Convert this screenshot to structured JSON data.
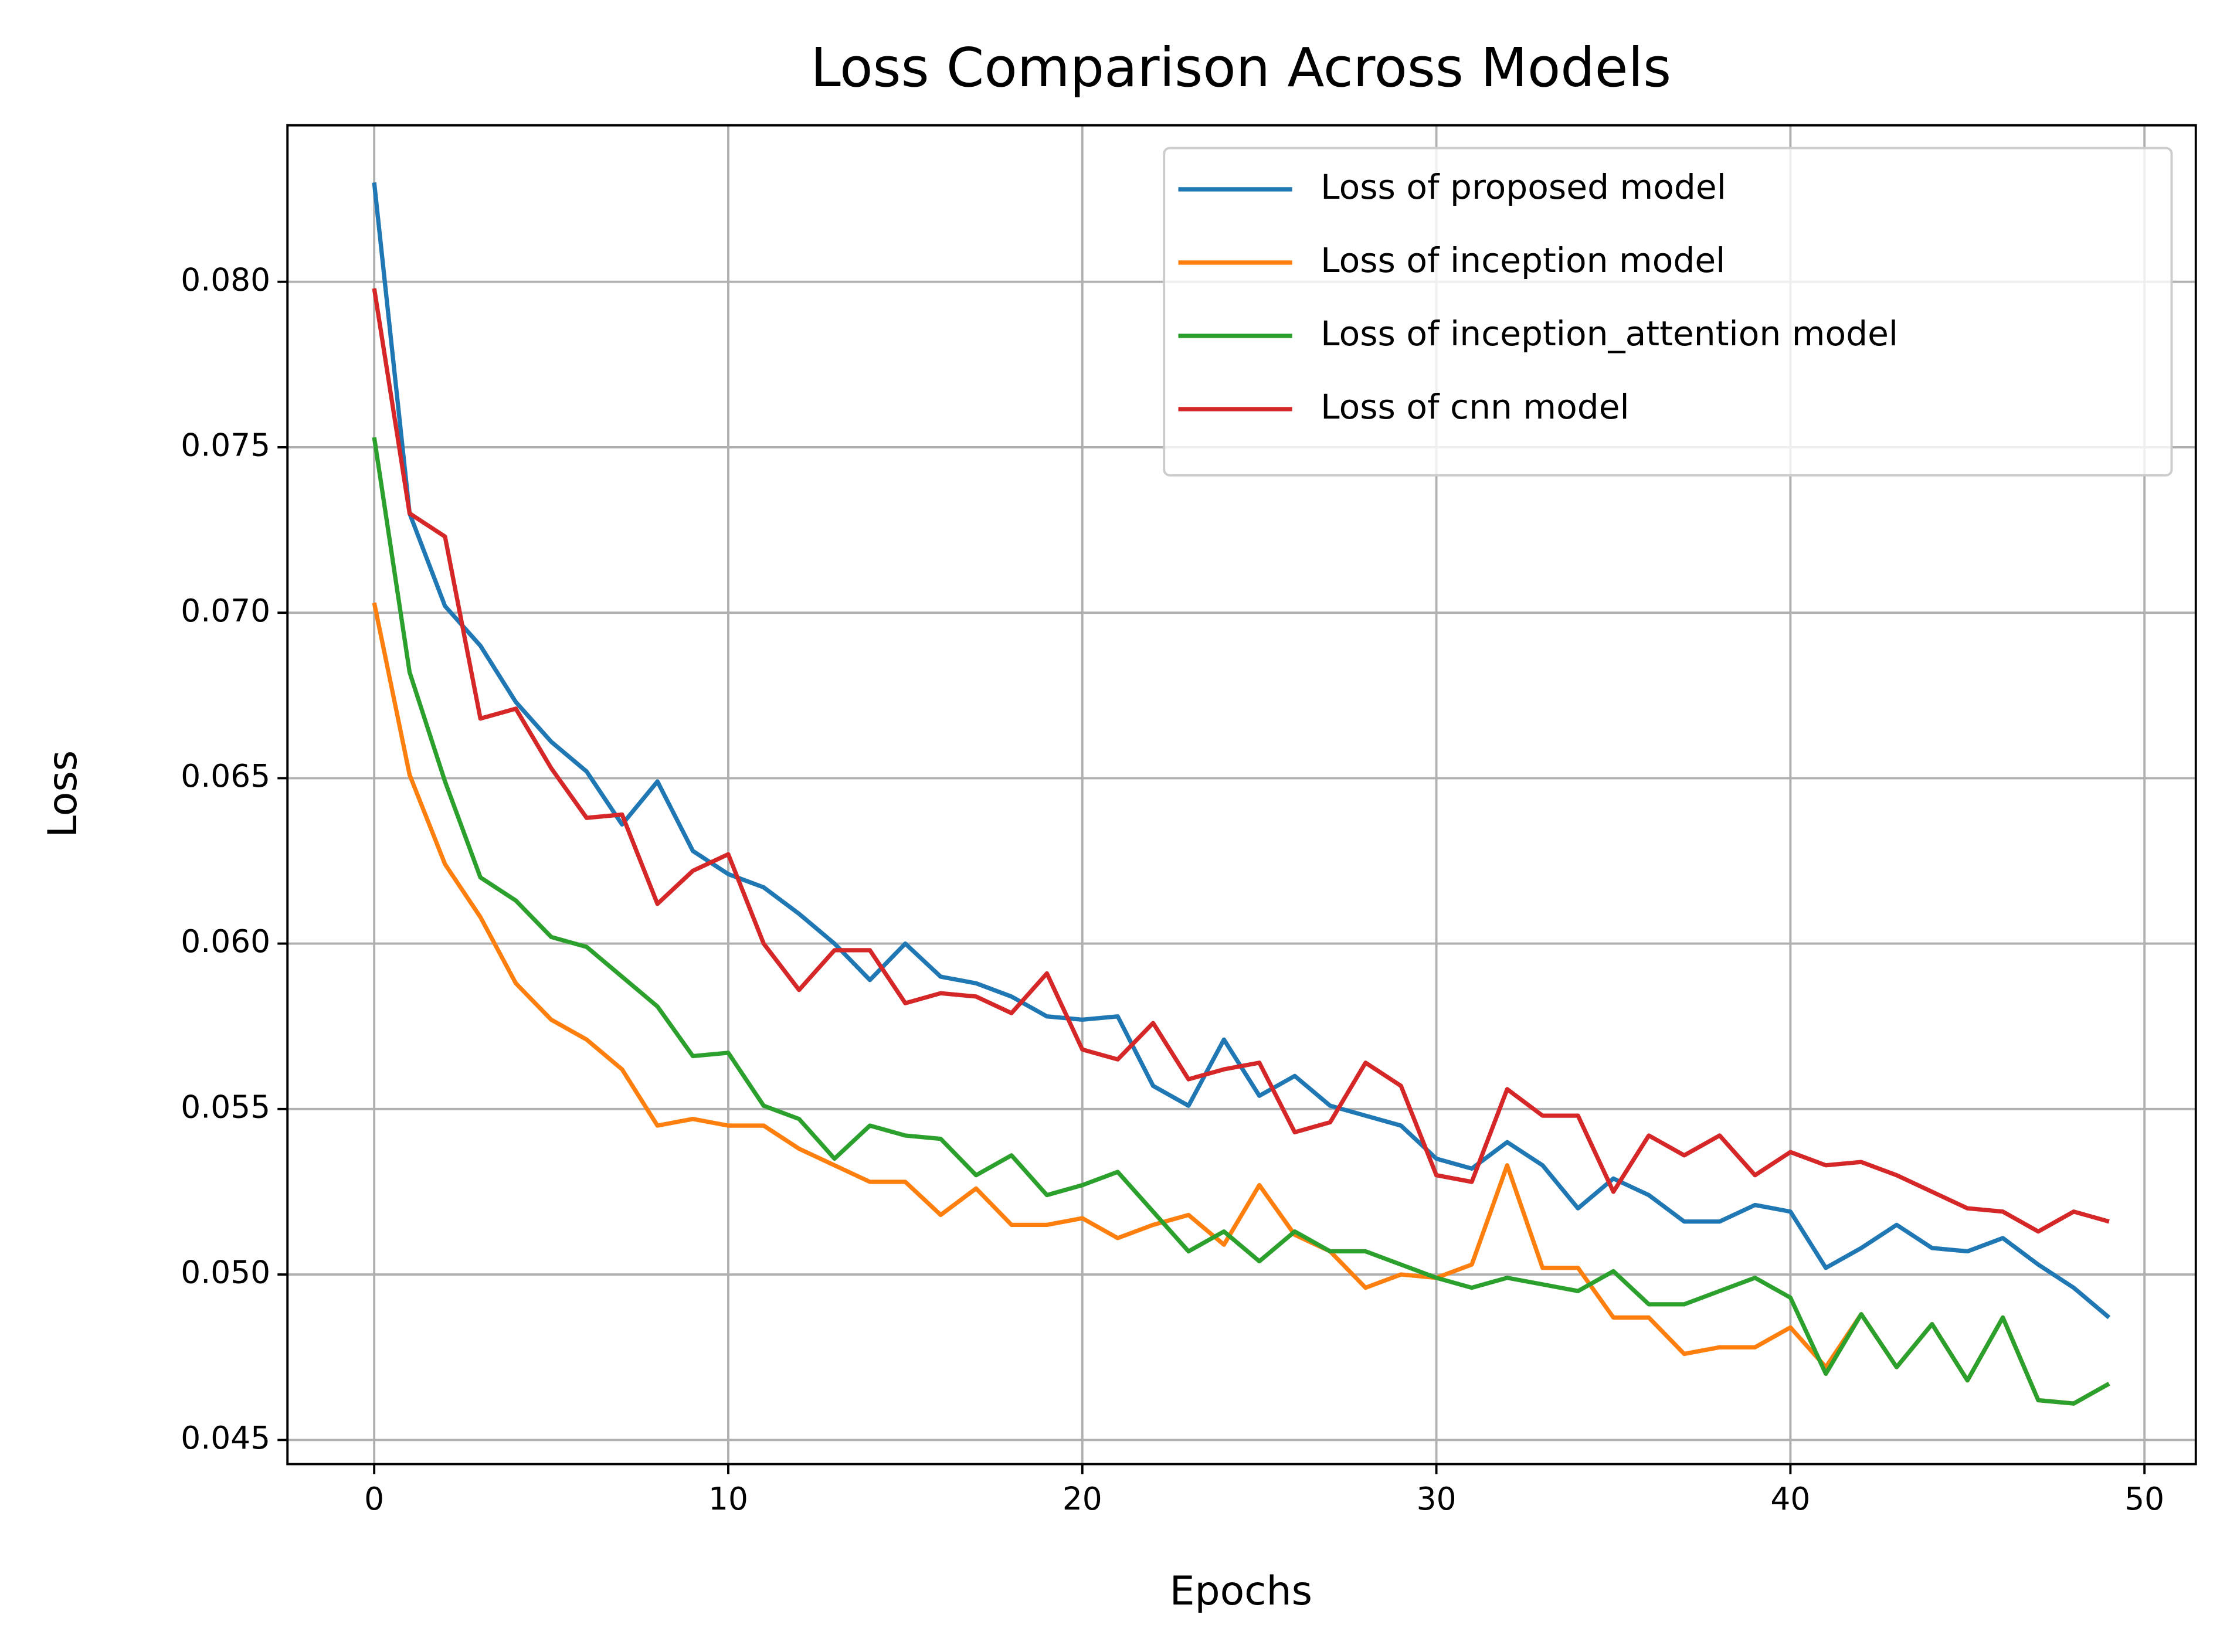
{
  "chart_data": {
    "type": "line",
    "title": "Loss Comparison Across Models",
    "xlabel": "Epochs",
    "ylabel": "Loss",
    "x": [
      0,
      1,
      2,
      3,
      4,
      5,
      6,
      7,
      8,
      9,
      10,
      11,
      12,
      13,
      14,
      15,
      16,
      17,
      18,
      19,
      20,
      21,
      22,
      23,
      24,
      25,
      26,
      27,
      28,
      29,
      30,
      31,
      32,
      33,
      34,
      35,
      36,
      37,
      38,
      39,
      40,
      41,
      42,
      43,
      44,
      45,
      46,
      47,
      48,
      49
    ],
    "series": [
      {
        "name": "Loss of proposed model",
        "color": "#1f77b4",
        "values": [
          0.083,
          0.073,
          0.0702,
          0.069,
          0.0673,
          0.0661,
          0.0652,
          0.0636,
          0.0649,
          0.0628,
          0.0621,
          0.0617,
          0.0609,
          0.06,
          0.0589,
          0.06,
          0.059,
          0.0588,
          0.0584,
          0.0578,
          0.0577,
          0.0578,
          0.0557,
          0.0551,
          0.0571,
          0.0554,
          0.056,
          0.0551,
          0.0548,
          0.0545,
          0.0535,
          0.0532,
          0.054,
          0.0533,
          0.052,
          0.0529,
          0.0524,
          0.0516,
          0.0516,
          0.0521,
          0.0519,
          0.0502,
          0.0508,
          0.0515,
          0.0508,
          0.0507,
          0.0511,
          0.0503,
          0.0496,
          0.0487
        ]
      },
      {
        "name": "Loss of inception model",
        "color": "#ff7f0e",
        "values": [
          0.0703,
          0.0651,
          0.0624,
          0.0608,
          0.0588,
          0.0577,
          0.0571,
          0.0562,
          0.0545,
          0.0547,
          0.0545,
          0.0545,
          0.0538,
          0.0533,
          0.0528,
          0.0528,
          0.0518,
          0.0526,
          0.0515,
          0.0515,
          0.0517,
          0.0511,
          0.0515,
          0.0518,
          0.0509,
          0.0527,
          0.0512,
          0.0507,
          0.0496,
          0.05,
          0.0499,
          0.0503,
          0.0533,
          0.0502,
          0.0502,
          0.0487,
          0.0487,
          0.0476,
          0.0478,
          0.0478,
          0.0484,
          0.0472,
          0.0488,
          0.0472,
          0.0485,
          0.0468,
          0.0487,
          0.0462,
          0.0461,
          0.0467
        ]
      },
      {
        "name": "Loss of inception_attention model",
        "color": "#2ca02c",
        "values": [
          0.0753,
          0.0682,
          0.0649,
          0.062,
          0.0613,
          0.0602,
          0.0599,
          0.059,
          0.0581,
          0.0566,
          0.0567,
          0.0551,
          0.0547,
          0.0535,
          0.0545,
          0.0542,
          0.0541,
          0.053,
          0.0536,
          0.0524,
          0.0527,
          0.0531,
          0.0519,
          0.0507,
          0.0513,
          0.0504,
          0.0513,
          0.0507,
          0.0507,
          0.0503,
          0.0499,
          0.0496,
          0.0499,
          0.0497,
          0.0495,
          0.0501,
          0.0491,
          0.0491,
          0.0495,
          0.0499,
          0.0493,
          0.047,
          0.0488,
          0.0472,
          0.0485,
          0.0468,
          0.0487,
          0.0462,
          0.0461,
          0.0467
        ]
      },
      {
        "name": "Loss of cnn model",
        "color": "#d62728",
        "values": [
          0.0798,
          0.073,
          0.0723,
          0.0668,
          0.0671,
          0.0653,
          0.0638,
          0.0639,
          0.0612,
          0.0622,
          0.0627,
          0.06,
          0.0586,
          0.0598,
          0.0598,
          0.0582,
          0.0585,
          0.0584,
          0.0579,
          0.0591,
          0.0568,
          0.0565,
          0.0576,
          0.0559,
          0.0562,
          0.0564,
          0.0543,
          0.0546,
          0.0564,
          0.0557,
          0.053,
          0.0528,
          0.0556,
          0.0548,
          0.0548,
          0.0525,
          0.0542,
          0.0536,
          0.0542,
          0.053,
          0.0537,
          0.0533,
          0.0534,
          0.053,
          0.0525,
          0.052,
          0.0519,
          0.0513,
          0.0519,
          0.0516
        ]
      }
    ],
    "xlim": [
      -2.45,
      51.45
    ],
    "ylim": [
      0.04427,
      0.08473
    ],
    "xticks": [
      0,
      10,
      20,
      30,
      40,
      50
    ],
    "yticks": [
      0.045,
      {
        "value": 0.05,
        "label": "0.050"
      },
      0.055,
      {
        "value": 0.06,
        "label": "0.060"
      },
      0.065,
      {
        "value": 0.07,
        "label": "0.070"
      },
      0.075,
      {
        "value": 0.08,
        "label": "0.080"
      }
    ],
    "grid": true,
    "legend": "upper right"
  }
}
